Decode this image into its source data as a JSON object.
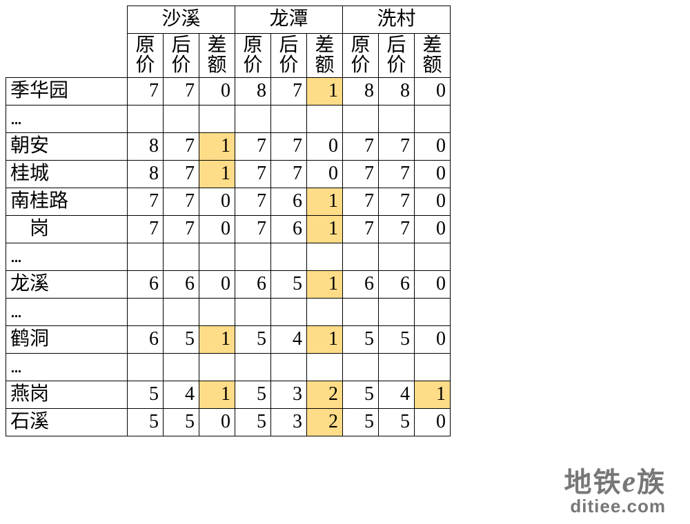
{
  "table": {
    "group_headers": [
      "沙溪",
      "龙潭",
      "洗村"
    ],
    "sub_headers": [
      "原价",
      "后价",
      "差额"
    ],
    "highlight_color": "#ffdd88",
    "border_color": "#000000",
    "background_color": "#ffffff",
    "font_size": 28,
    "rows": [
      {
        "station": "季华园",
        "cells": [
          {
            "v": 7
          },
          {
            "v": 7
          },
          {
            "v": 0
          },
          {
            "v": 8
          },
          {
            "v": 7
          },
          {
            "v": 1,
            "hl": true
          },
          {
            "v": 8
          },
          {
            "v": 8
          },
          {
            "v": 0
          }
        ]
      },
      {
        "station": "...",
        "ellipsis": true,
        "cells": [
          {
            "v": ""
          },
          {
            "v": ""
          },
          {
            "v": ""
          },
          {
            "v": ""
          },
          {
            "v": ""
          },
          {
            "v": ""
          },
          {
            "v": ""
          },
          {
            "v": ""
          },
          {
            "v": ""
          }
        ]
      },
      {
        "station": "朝安",
        "cells": [
          {
            "v": 8
          },
          {
            "v": 7
          },
          {
            "v": 1,
            "hl": true
          },
          {
            "v": 7
          },
          {
            "v": 7
          },
          {
            "v": 0
          },
          {
            "v": 7
          },
          {
            "v": 7
          },
          {
            "v": 0
          }
        ]
      },
      {
        "station": "桂城",
        "cells": [
          {
            "v": 8
          },
          {
            "v": 7
          },
          {
            "v": 1,
            "hl": true
          },
          {
            "v": 7
          },
          {
            "v": 7
          },
          {
            "v": 0
          },
          {
            "v": 7
          },
          {
            "v": 7
          },
          {
            "v": 0
          }
        ]
      },
      {
        "station": "南桂路",
        "cells": [
          {
            "v": 7
          },
          {
            "v": 7
          },
          {
            "v": 0
          },
          {
            "v": 7
          },
          {
            "v": 6
          },
          {
            "v": 1,
            "hl": true
          },
          {
            "v": 7
          },
          {
            "v": 7
          },
          {
            "v": 0
          }
        ]
      },
      {
        "station": "　岗",
        "cells": [
          {
            "v": 7
          },
          {
            "v": 7
          },
          {
            "v": 0
          },
          {
            "v": 7
          },
          {
            "v": 6
          },
          {
            "v": 1,
            "hl": true
          },
          {
            "v": 7
          },
          {
            "v": 7
          },
          {
            "v": 0
          }
        ]
      },
      {
        "station": "...",
        "ellipsis": true,
        "cells": [
          {
            "v": ""
          },
          {
            "v": ""
          },
          {
            "v": ""
          },
          {
            "v": ""
          },
          {
            "v": ""
          },
          {
            "v": ""
          },
          {
            "v": ""
          },
          {
            "v": ""
          },
          {
            "v": ""
          }
        ]
      },
      {
        "station": "龙溪",
        "cells": [
          {
            "v": 6
          },
          {
            "v": 6
          },
          {
            "v": 0
          },
          {
            "v": 6
          },
          {
            "v": 5
          },
          {
            "v": 1,
            "hl": true
          },
          {
            "v": 6
          },
          {
            "v": 6
          },
          {
            "v": 0
          }
        ]
      },
      {
        "station": "...",
        "ellipsis": true,
        "cells": [
          {
            "v": ""
          },
          {
            "v": ""
          },
          {
            "v": ""
          },
          {
            "v": ""
          },
          {
            "v": ""
          },
          {
            "v": ""
          },
          {
            "v": ""
          },
          {
            "v": ""
          },
          {
            "v": ""
          }
        ]
      },
      {
        "station": "鹤洞",
        "cells": [
          {
            "v": 6
          },
          {
            "v": 5
          },
          {
            "v": 1,
            "hl": true
          },
          {
            "v": 5
          },
          {
            "v": 4
          },
          {
            "v": 1,
            "hl": true
          },
          {
            "v": 5
          },
          {
            "v": 5
          },
          {
            "v": 0
          }
        ]
      },
      {
        "station": "...",
        "ellipsis": true,
        "cells": [
          {
            "v": ""
          },
          {
            "v": ""
          },
          {
            "v": ""
          },
          {
            "v": ""
          },
          {
            "v": ""
          },
          {
            "v": ""
          },
          {
            "v": ""
          },
          {
            "v": ""
          },
          {
            "v": ""
          }
        ]
      },
      {
        "station": "燕岗",
        "cells": [
          {
            "v": 5
          },
          {
            "v": 4
          },
          {
            "v": 1,
            "hl": true
          },
          {
            "v": 5
          },
          {
            "v": 3
          },
          {
            "v": 2,
            "hl": true
          },
          {
            "v": 5
          },
          {
            "v": 4
          },
          {
            "v": 1,
            "hl": true
          }
        ]
      },
      {
        "station": "石溪",
        "cells": [
          {
            "v": 5
          },
          {
            "v": 5
          },
          {
            "v": 0
          },
          {
            "v": 5
          },
          {
            "v": 3
          },
          {
            "v": 2,
            "hl": true
          },
          {
            "v": 5
          },
          {
            "v": 5
          },
          {
            "v": 0
          }
        ]
      }
    ]
  },
  "watermark": {
    "main_prefix": "地铁",
    "main_e": "e",
    "main_suffix": "族",
    "sub": "ditiee.com",
    "color": "#777777"
  }
}
